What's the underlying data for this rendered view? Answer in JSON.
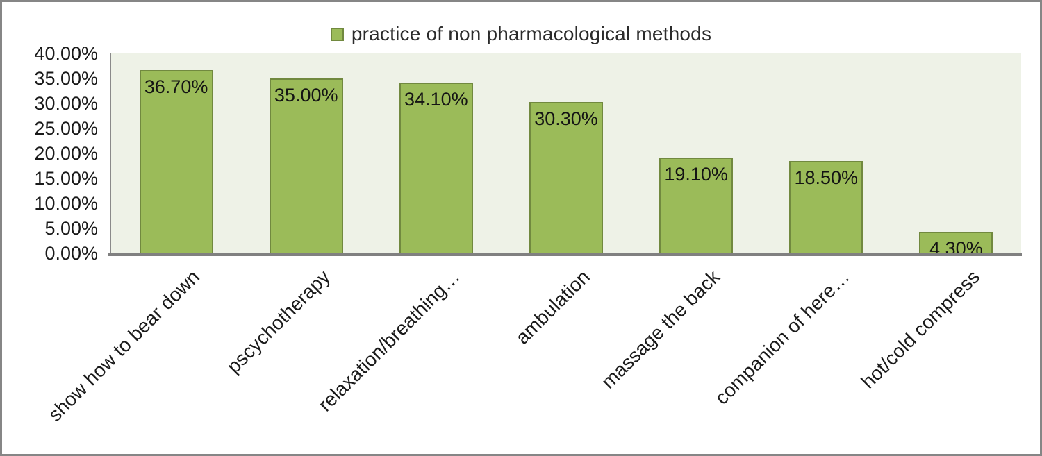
{
  "chart": {
    "legend": {
      "label": "practice of non pharmacological methods",
      "swatch_fill": "#9BBB59",
      "swatch_border": "#71893F"
    },
    "y_axis": {
      "tick_labels": [
        "40.00%",
        "35.00%",
        "30.00%",
        "25.00%",
        "20.00%",
        "15.00%",
        "10.00%",
        "5.00%",
        "0.00%"
      ]
    },
    "colors": {
      "bar_fill": "#9BBB59",
      "bar_border": "#71893F",
      "plot_background": "#EEF2E7",
      "axis_line": "#808080",
      "chart_border": "#868686"
    }
  },
  "chart_data": {
    "type": "bar",
    "title": "practice of non pharmacological methods",
    "categories": [
      "show how to bear down",
      "pscychotherapy",
      "relaxation/breathing…",
      "ambulation",
      "massage the back",
      "companion of here…",
      "hot/cold compress"
    ],
    "values": [
      36.7,
      35.0,
      34.1,
      30.3,
      19.1,
      18.5,
      4.3
    ],
    "data_labels": [
      "36.70%",
      "35.00%",
      "34.10%",
      "30.30%",
      "19.10%",
      "18.50%",
      "4.30%"
    ],
    "xlabel": "",
    "ylabel": "",
    "ylim": [
      0,
      40
    ],
    "ytick_step": 5,
    "grid": false,
    "legend_position": "top-center",
    "data_label_position": "inside-end"
  }
}
